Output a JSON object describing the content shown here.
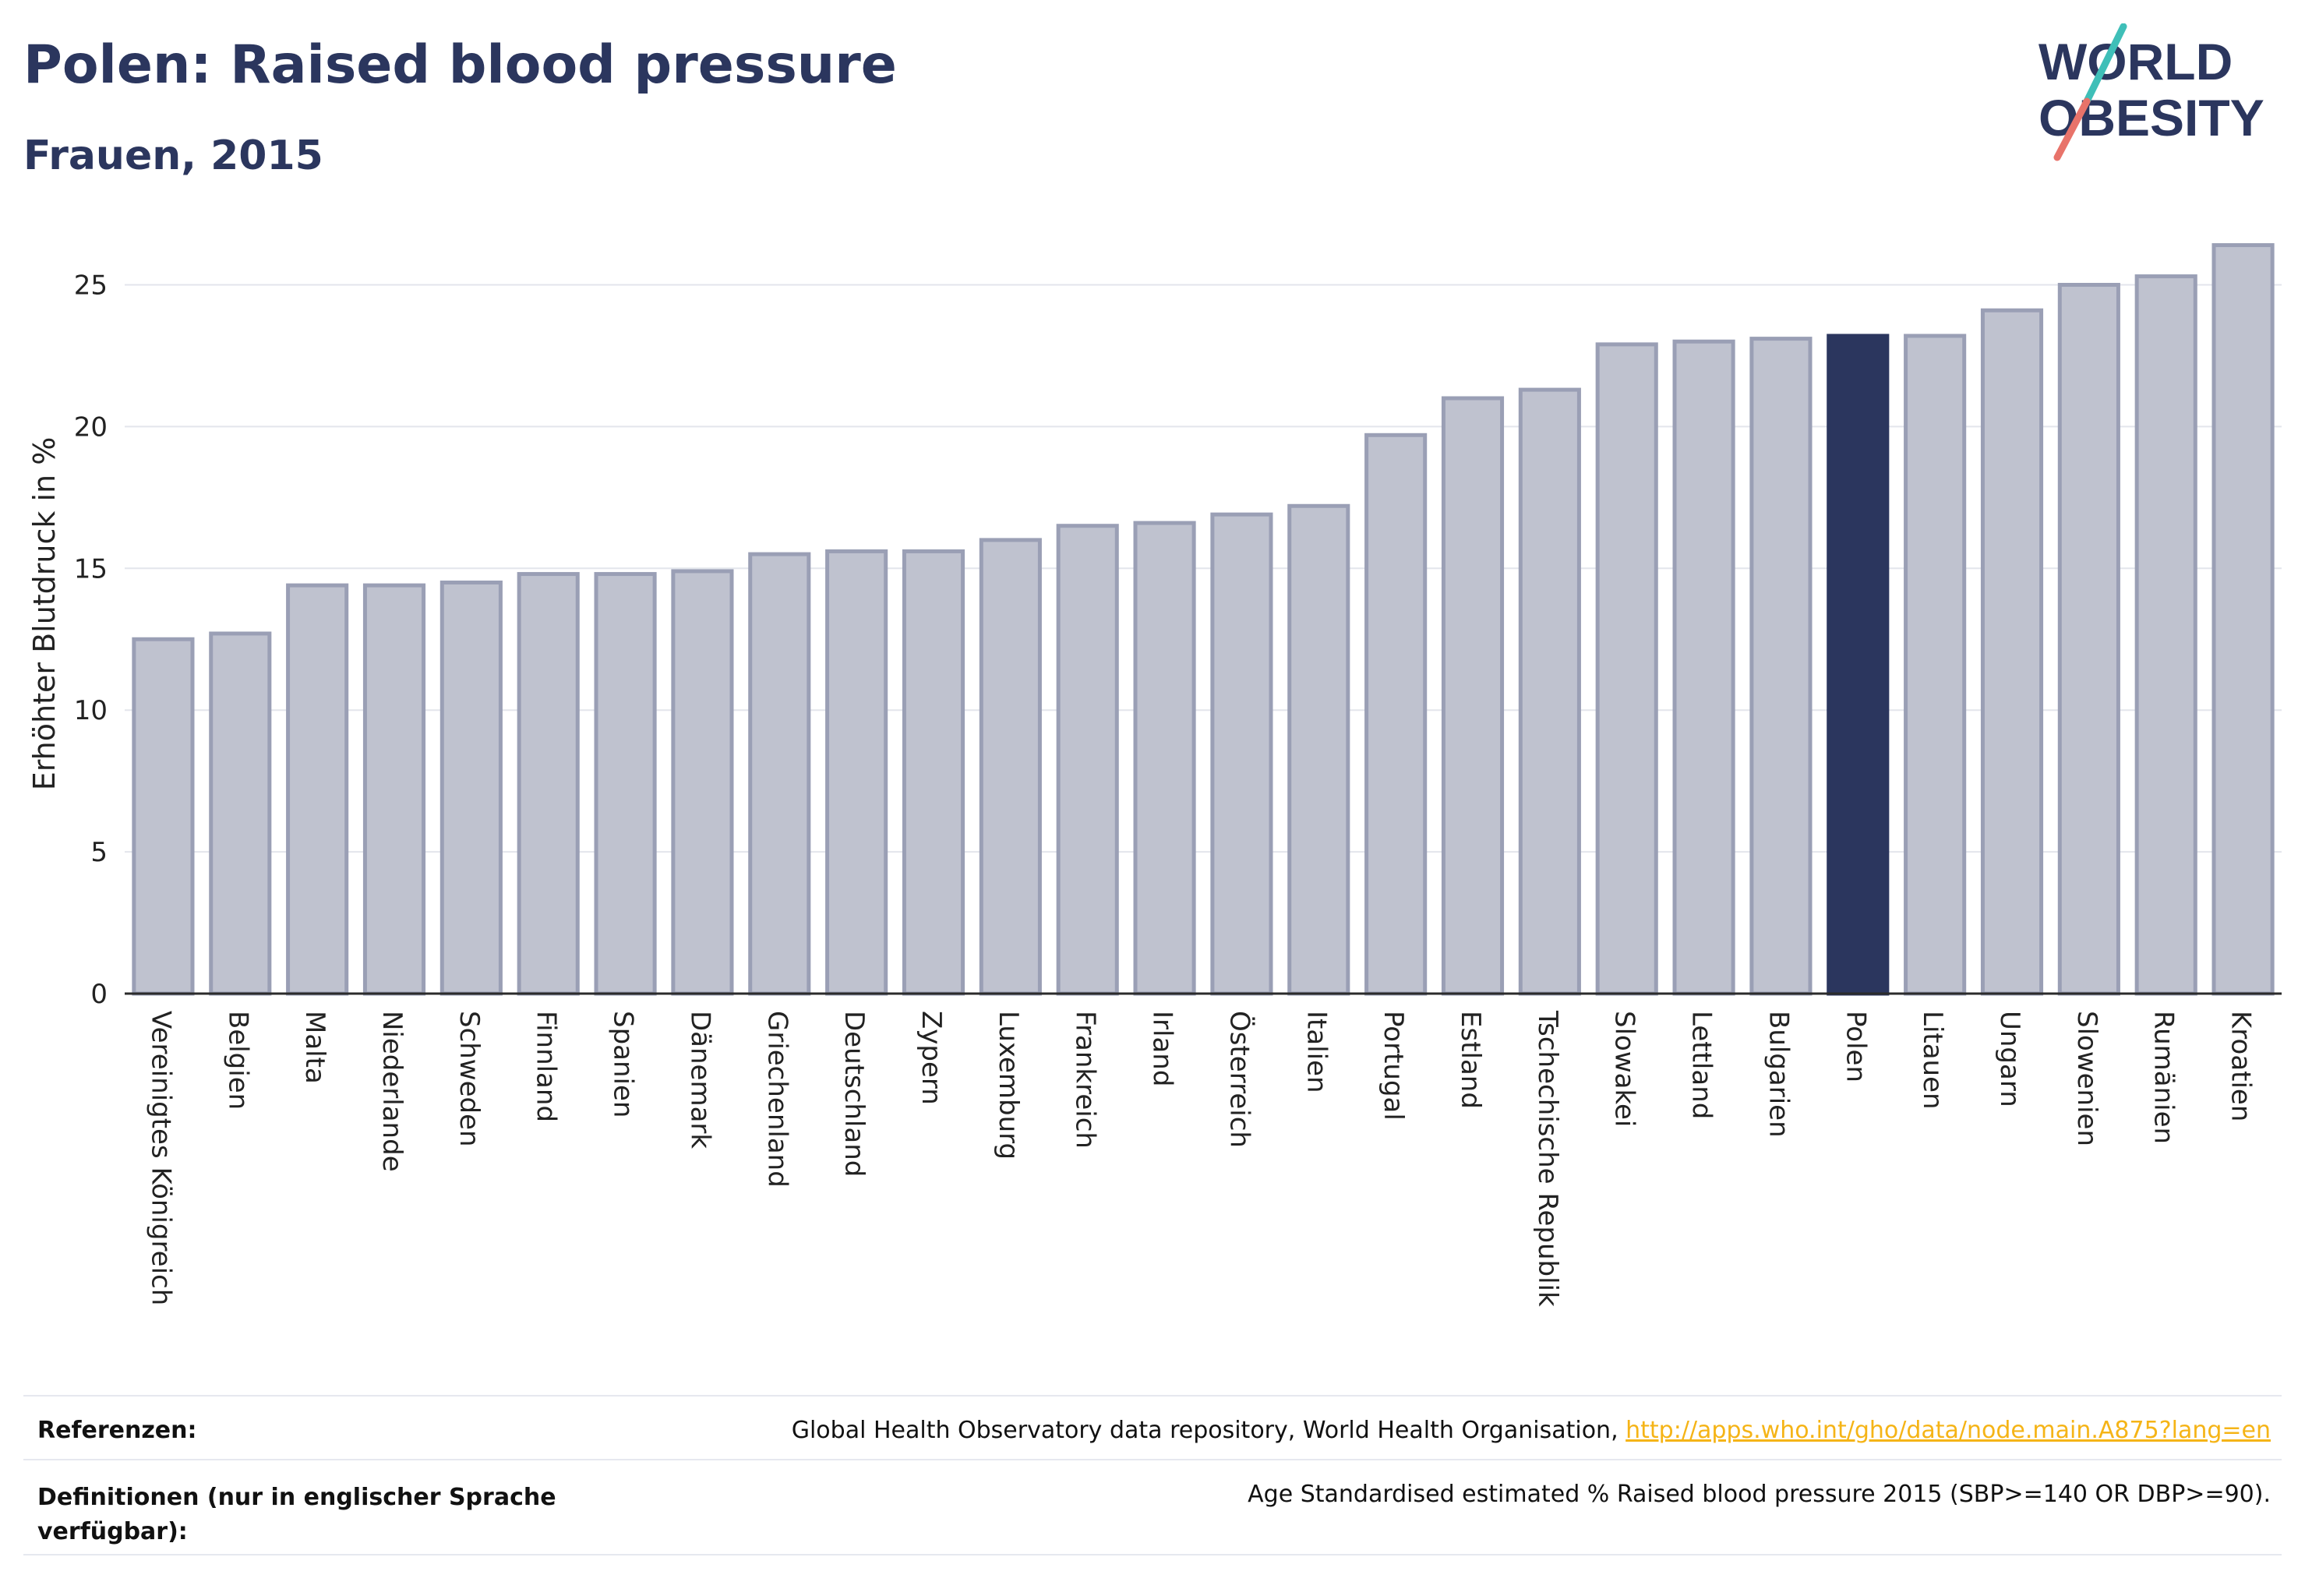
{
  "header": {
    "title": "Polen: Raised blood pressure",
    "subtitle": "Frauen, 2015"
  },
  "logo": {
    "line1": "WORLD",
    "line2": "OBESITY",
    "colors": {
      "text": "#2b365e",
      "teal": "#3fbfb8",
      "coral": "#e8736a"
    }
  },
  "chart_data": {
    "type": "bar",
    "title": "",
    "xlabel": "",
    "ylabel": "Erhöhter Blutdruck in %",
    "ylim": [
      0,
      26.8
    ],
    "yticks": [
      0,
      5,
      10,
      15,
      20,
      25
    ],
    "grid": true,
    "highlight": "Polen",
    "colors": {
      "bar": "#bfc2cf",
      "bar_edge": "#9a9fb5",
      "highlight": "#2b365e",
      "grid": "#e3e5ec",
      "axis": "#2b2b2b"
    },
    "categories": [
      "Vereinigtes Königreich",
      "Belgien",
      "Malta",
      "Niederlande",
      "Schweden",
      "Finnland",
      "Spanien",
      "Dänemark",
      "Griechenland",
      "Deutschland",
      "Zypern",
      "Luxemburg",
      "Frankreich",
      "Irland",
      "Österreich",
      "Italien",
      "Portugal",
      "Estland",
      "Tschechische Republik",
      "Slowakei",
      "Lettland",
      "Bulgarien",
      "Polen",
      "Litauen",
      "Ungarn",
      "Slowenien",
      "Rumänien",
      "Kroatien"
    ],
    "values": [
      12.5,
      12.7,
      14.4,
      14.4,
      14.5,
      14.8,
      14.8,
      14.9,
      15.5,
      15.6,
      15.6,
      16.0,
      16.5,
      16.6,
      16.9,
      17.2,
      19.7,
      21.0,
      21.3,
      22.9,
      23.0,
      23.1,
      23.2,
      23.2,
      24.1,
      25.0,
      25.3,
      26.4
    ]
  },
  "footer": {
    "references_label": "Referenzen:",
    "references_text": "Global Health Observatory data repository, World Health Organisation, ",
    "references_link": "http://apps.who.int/gho/data/node.main.A875?lang=en",
    "definitions_label": "Definitionen (nur in englischer Sprache verfügbar):",
    "definitions_text": "Age Standardised estimated % Raised blood pressure 2015 (SBP>=140 OR DBP>=90)."
  }
}
